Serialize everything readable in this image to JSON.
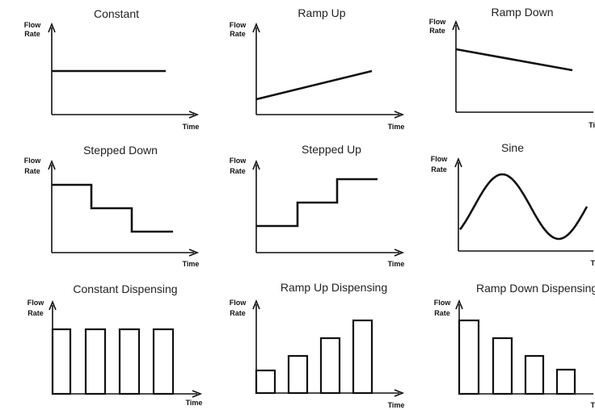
{
  "panels": [
    {
      "id": "constant",
      "title": "Constant",
      "ylabel_line1": "Flow",
      "ylabel_line2": "Rate",
      "xlabel": "Time"
    },
    {
      "id": "ramp-up",
      "title": "Ramp Up",
      "ylabel_line1": "Flow",
      "ylabel_line2": "Rate",
      "xlabel": "Time"
    },
    {
      "id": "ramp-down",
      "title": "Ramp  Down",
      "ylabel_line1": "Flow",
      "ylabel_line2": "Rate",
      "xlabel": "Time"
    },
    {
      "id": "stepped-down",
      "title": "Stepped  Down",
      "ylabel_line1": "Flow",
      "ylabel_line2": "Rate",
      "xlabel": "Time"
    },
    {
      "id": "stepped-up",
      "title": "Stepped  Up",
      "ylabel_line1": "Flow",
      "ylabel_line2": "Rate",
      "xlabel": "Time"
    },
    {
      "id": "sine",
      "title": "Sine",
      "ylabel_line1": "Flow",
      "ylabel_line2": "Rate",
      "xlabel": "Time"
    },
    {
      "id": "constant-dispensing",
      "title": "Constant  Dispensing",
      "ylabel_line1": "Flow",
      "ylabel_line2": "Rate",
      "xlabel": "Time"
    },
    {
      "id": "ramp-up-dispensing",
      "title": "Ramp  Up  Dispensing",
      "ylabel_line1": "Flow",
      "ylabel_line2": "Rate",
      "xlabel": "Time"
    },
    {
      "id": "ramp-down-dispensing",
      "title": "Ramp  Down  Dispensing",
      "ylabel_line1": "Flow",
      "ylabel_line2": "Rate",
      "xlabel": "Time"
    }
  ],
  "colors": {
    "line": "#111111",
    "background": "#ffffff"
  }
}
